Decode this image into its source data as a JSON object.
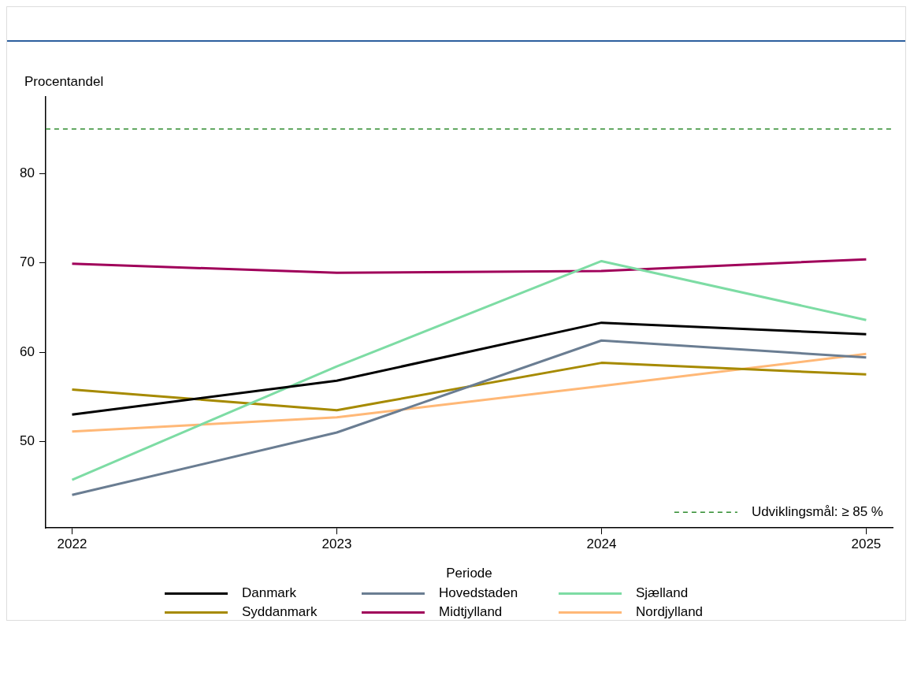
{
  "chart_data": {
    "type": "line",
    "xlabel": "Periode",
    "ylabel": "Procentandel",
    "x": [
      2022,
      2023,
      2024,
      2025
    ],
    "xlim": [
      2021.9,
      2025.1
    ],
    "xticks": [
      2022,
      2023,
      2024,
      2025
    ],
    "ylim": [
      40.3,
      88.6
    ],
    "yticks": [
      50,
      60,
      70,
      80
    ],
    "grid": false,
    "legend": "bottom",
    "marker": "none",
    "line_style": "solid",
    "series": [
      {
        "name": "Danmark",
        "color": "#000000",
        "values": [
          53.0,
          56.8,
          63.3,
          62.0
        ]
      },
      {
        "name": "Hovedstaden",
        "color": "#6a7d92",
        "values": [
          44.0,
          51.0,
          61.3,
          59.4
        ]
      },
      {
        "name": "Sjælland",
        "color": "#7ddca4",
        "values": [
          45.7,
          58.4,
          70.2,
          63.6
        ]
      },
      {
        "name": "Syddanmark",
        "color": "#a68a00",
        "values": [
          55.8,
          53.5,
          58.8,
          57.5
        ]
      },
      {
        "name": "Midtjylland",
        "color": "#a0005a",
        "values": [
          69.9,
          68.9,
          69.1,
          70.4
        ]
      },
      {
        "name": "Nordjylland",
        "color": "#ffb877",
        "values": [
          51.1,
          52.7,
          56.2,
          59.8
        ]
      }
    ],
    "ref_lines": [
      {
        "axis": "y",
        "value": 85,
        "label": "Udviklingsmål: ≥ 85 %",
        "color": "#2e8b2e",
        "line_style": "dashed"
      }
    ]
  }
}
